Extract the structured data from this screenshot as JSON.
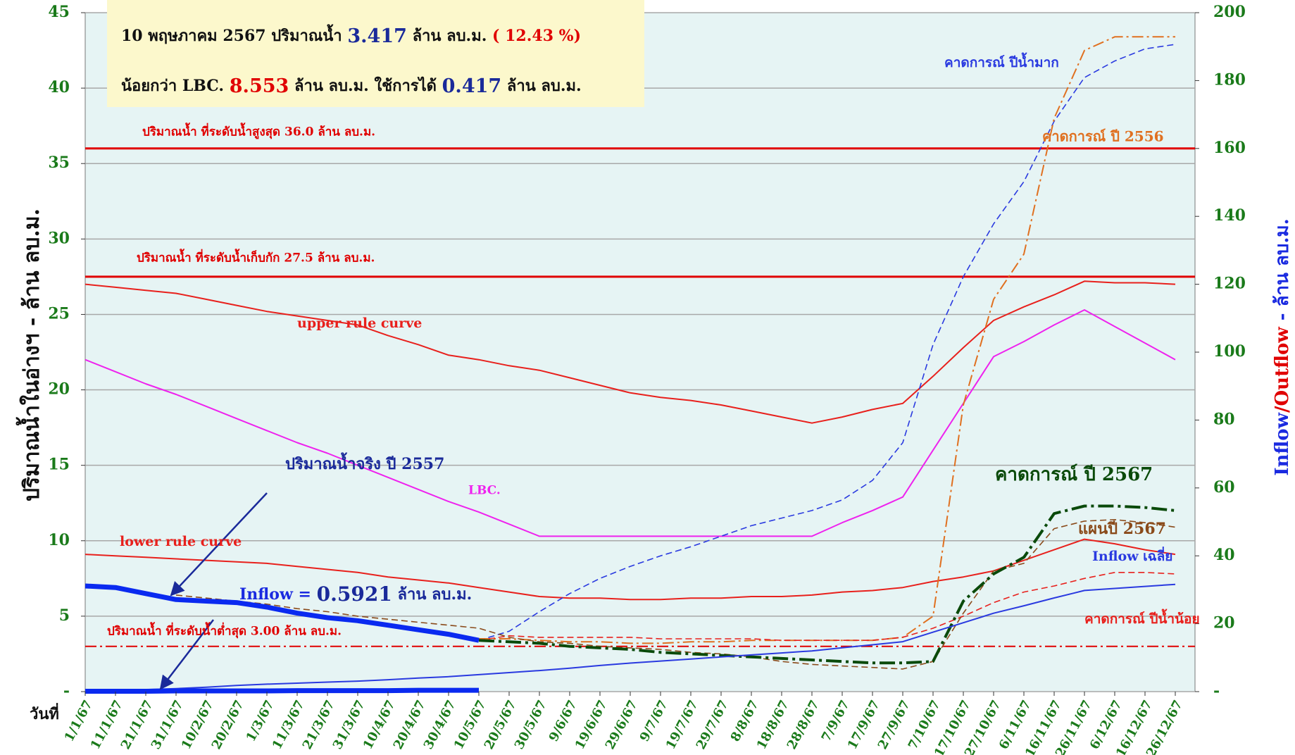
{
  "chart_data": {
    "type": "line",
    "info_box": {
      "line1": [
        "10 พฤษภาคม 2567 ปริมาณน้ำ",
        "3.417",
        "ล้าน ลบ.ม.",
        "( 12.43 %)"
      ],
      "line2": [
        "น้อยกว่า LBC.",
        "8.553",
        "ล้าน ลบ.ม.  ใช้การได้",
        "0.417",
        "ล้าน ลบ.ม."
      ]
    },
    "inflow_label": [
      "Inflow =",
      "0.5921",
      "ล้าน ลบ.ม."
    ],
    "y_label": "ปริมาณน้ำในอ่างฯ - ล้าน ลบ.ม.",
    "y2_label": [
      "Inflow",
      "/",
      "Outflow",
      " - ล้าน ลบ.ม."
    ],
    "x_label": "วันที่",
    "grid": true,
    "categories": [
      "1/1/67",
      "11/1/67",
      "21/1/67",
      "31/1/67",
      "10/2/67",
      "20/2/67",
      "1/3/67",
      "11/3/67",
      "21/3/67",
      "31/3/67",
      "10/4/67",
      "20/4/67",
      "30/4/67",
      "10/5/67",
      "20/5/67",
      "30/5/67",
      "9/6/67",
      "19/6/67",
      "29/6/67",
      "9/7/67",
      "19/7/67",
      "29/7/67",
      "8/8/67",
      "18/8/67",
      "28/8/67",
      "7/9/67",
      "17/9/67",
      "27/9/67",
      "7/10/67",
      "17/10/67",
      "27/10/67",
      "6/11/67",
      "16/11/67",
      "26/11/67",
      "6/12/67",
      "16/12/67",
      "26/12/67"
    ],
    "ylim": [
      0,
      45
    ],
    "yticks": [
      {
        "value": 0,
        "label": "-"
      },
      5,
      10,
      15,
      20,
      25,
      30,
      35,
      40,
      45
    ],
    "y2lim": [
      0,
      200
    ],
    "y2ticks": [
      {
        "value": 0,
        "label": "-"
      },
      20,
      40,
      60,
      80,
      100,
      120,
      140,
      160,
      180,
      200
    ],
    "reference_lines": [
      {
        "value": 36.0,
        "label": "ปริมาณน้ำ ที่ระดับน้ำสูงสุด 36.0 ล้าน ลบ.ม.",
        "color": "#e00000",
        "style": "solid"
      },
      {
        "value": 27.5,
        "label": "ปริมาณน้ำ ที่ระดับน้ำเก็บกัก 27.5 ล้าน ลบ.ม.",
        "color": "#e00000",
        "style": "solid"
      },
      {
        "value": 3.0,
        "label": "ปริมาณน้ำ ที่ระดับน้ำต่ำสุด 3.00 ล้าน ลบ.ม.",
        "color": "#e00000",
        "style": "dashdot"
      }
    ],
    "series": [
      {
        "name": "upper  rule curve",
        "color": "#e8201c",
        "style": "solid",
        "values": [
          27.0,
          26.8,
          26.6,
          26.4,
          26.0,
          25.6,
          25.2,
          24.9,
          24.6,
          24.3,
          23.6,
          23.0,
          22.3,
          22.0,
          21.6,
          21.3,
          20.8,
          20.3,
          19.8,
          19.5,
          19.3,
          19.0,
          18.6,
          18.2,
          17.8,
          18.2,
          18.7,
          19.1,
          20.9,
          22.8,
          24.6,
          25.5,
          26.3,
          27.2,
          27.1,
          27.1,
          27.0
        ]
      },
      {
        "name": "lower  rule curve",
        "color": "#e8201c",
        "style": "solid",
        "values": [
          9.1,
          9.0,
          8.9,
          8.8,
          8.7,
          8.6,
          8.5,
          8.3,
          8.1,
          7.9,
          7.6,
          7.4,
          7.2,
          6.9,
          6.6,
          6.3,
          6.2,
          6.2,
          6.1,
          6.1,
          6.2,
          6.2,
          6.3,
          6.3,
          6.4,
          6.6,
          6.7,
          6.9,
          7.3,
          7.6,
          8.0,
          8.7,
          9.4,
          10.1,
          9.8,
          9.4,
          9.1
        ]
      },
      {
        "name": "LBC.",
        "color": "#ee22ee",
        "style": "solid",
        "values": [
          22.0,
          21.2,
          20.4,
          19.7,
          18.9,
          18.1,
          17.3,
          16.5,
          15.8,
          15.0,
          14.2,
          13.4,
          12.6,
          11.9,
          11.1,
          10.3,
          10.3,
          10.3,
          10.3,
          10.3,
          10.3,
          10.3,
          10.3,
          10.3,
          10.3,
          11.2,
          12.0,
          12.9,
          16.0,
          19.1,
          22.2,
          23.2,
          24.3,
          25.3,
          24.2,
          23.1,
          22.0
        ]
      },
      {
        "name": "คาดการณ์ ปีน้ำมาก",
        "color": "#2a3ae0",
        "style": "dashed",
        "values": [
          null,
          null,
          null,
          null,
          null,
          null,
          null,
          null,
          null,
          null,
          null,
          null,
          null,
          3.4,
          4.0,
          5.3,
          6.5,
          7.5,
          8.3,
          9.0,
          9.6,
          10.3,
          11.0,
          11.5,
          12.0,
          12.7,
          14.0,
          16.5,
          23.0,
          27.5,
          31.0,
          33.8,
          37.8,
          40.7,
          41.8,
          42.6,
          42.9
        ]
      },
      {
        "name": "คาดการณ์ ปี 2556",
        "color": "#e07020",
        "style": "dashdot",
        "values": [
          null,
          null,
          null,
          null,
          null,
          null,
          null,
          null,
          null,
          null,
          null,
          null,
          null,
          3.5,
          3.5,
          3.4,
          3.3,
          3.3,
          3.2,
          3.2,
          3.3,
          3.3,
          3.4,
          3.4,
          3.4,
          3.4,
          3.4,
          3.6,
          5.0,
          19.0,
          26.0,
          29.0,
          38.0,
          42.5,
          43.4,
          43.4,
          43.4
        ]
      },
      {
        "name": "คาดการณ์ ปีน้ำน้อย",
        "color": "#e8201c",
        "style": "dashed",
        "values": [
          null,
          null,
          null,
          null,
          null,
          null,
          null,
          null,
          null,
          null,
          null,
          null,
          null,
          3.4,
          3.7,
          3.6,
          3.6,
          3.6,
          3.6,
          3.5,
          3.5,
          3.5,
          3.5,
          3.4,
          3.4,
          3.4,
          3.4,
          3.6,
          4.2,
          5.0,
          5.9,
          6.6,
          7.0,
          7.5,
          7.9,
          7.9,
          7.8
        ]
      },
      {
        "name": "แผนปี 2567",
        "color": "#8a4a1a",
        "style": "dashed",
        "values": [
          null,
          null,
          null,
          6.4,
          6.2,
          6.0,
          5.8,
          5.5,
          5.3,
          5.0,
          4.8,
          4.6,
          4.4,
          4.2,
          3.6,
          3.3,
          3.2,
          3.0,
          2.9,
          2.8,
          2.6,
          2.5,
          2.3,
          2.0,
          1.8,
          1.7,
          1.6,
          1.5,
          2.0,
          5.2,
          8.0,
          8.5,
          10.8,
          11.3,
          11.4,
          11.2,
          10.9
        ]
      },
      {
        "name": "คาดการณ์ ปี 2567",
        "color": "#0a4a0a",
        "style": "dashdot-thick",
        "values": [
          null,
          null,
          null,
          null,
          null,
          null,
          null,
          null,
          null,
          null,
          null,
          null,
          null,
          3.4,
          3.3,
          3.2,
          3.0,
          2.9,
          2.8,
          2.6,
          2.5,
          2.4,
          2.3,
          2.2,
          2.1,
          2.0,
          1.9,
          1.9,
          2.0,
          6.0,
          7.8,
          8.9,
          11.8,
          12.3,
          12.3,
          12.2,
          12.0
        ]
      },
      {
        "name": "Inflow เฉลี่ย",
        "color": "#2a3ae0",
        "style": "solid",
        "axis": "y2",
        "values": [
          0,
          0.3,
          0.6,
          0.9,
          1.3,
          1.8,
          2.2,
          2.5,
          2.8,
          3.1,
          3.5,
          4.0,
          4.4,
          5.0,
          5.6,
          6.2,
          6.9,
          7.7,
          8.4,
          9.0,
          9.6,
          10.2,
          10.8,
          11.4,
          12.0,
          12.9,
          13.8,
          14.7,
          17.5,
          20.3,
          23.1,
          25.3,
          27.6,
          29.8,
          30.4,
          31.0,
          31.6
        ]
      },
      {
        "name": "ปริมาณน้ำจริง ปี 2557",
        "color": "#0a2af0",
        "style": "thick",
        "values": [
          7.0,
          6.9,
          6.5,
          6.1,
          6.0,
          5.9,
          5.6,
          5.2,
          4.9,
          4.7,
          4.4,
          4.1,
          3.8,
          3.4,
          null,
          null,
          null,
          null,
          null,
          null,
          null,
          null,
          null,
          null,
          null,
          null,
          null,
          null,
          null,
          null,
          null,
          null,
          null,
          null,
          null,
          null,
          null
        ]
      },
      {
        "color": "#0a2af0",
        "style": "thick",
        "axis": "y2",
        "values": [
          0.1,
          0.1,
          0.1,
          0.2,
          0.2,
          0.2,
          0.2,
          0.3,
          0.3,
          0.3,
          0.3,
          0.4,
          0.4,
          0.4,
          null,
          null,
          null,
          null,
          null,
          null,
          null,
          null,
          null,
          null,
          null,
          null,
          null,
          null,
          null,
          null,
          null,
          null,
          null,
          null,
          null,
          null,
          null
        ]
      }
    ]
  }
}
